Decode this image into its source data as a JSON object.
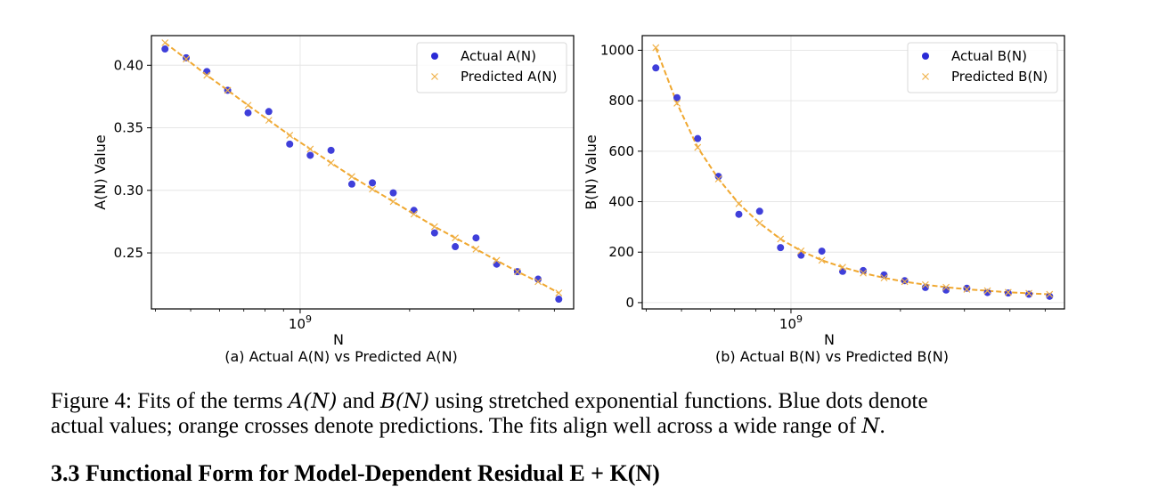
{
  "caption": {
    "label": "Figure 4:",
    "part1": "Fits of the terms",
    "term_a": "A(N)",
    "and": "and",
    "term_b": "B(N)",
    "part2": "using stretched exponential functions. Blue dots denote",
    "line2": "actual values; orange crosses denote predictions. The fits align well across a wide range of",
    "term_n": "N",
    "end": "."
  },
  "section_heading": "3.3 Functional Form for Model-Dependent Residual E + K(N)",
  "colors": {
    "actual": "#2a2ad6",
    "predicted": "#f0b24a",
    "fit_line": "#f0a830"
  },
  "chart_data": [
    {
      "type": "scatter",
      "subtitle": "(a) Actual A(N) vs Predicted A(N)",
      "xlabel": "N",
      "ylabel": "A(N) Value",
      "xscale": "log",
      "xlim": [
        390000000,
        5650000000
      ],
      "ylim": [
        0.2052,
        0.4237
      ],
      "xticks": [
        {
          "value": 1000000000,
          "label": "10",
          "exp": "9"
        }
      ],
      "yticks": [
        {
          "value": 0.25,
          "label": "0.25"
        },
        {
          "value": 0.3,
          "label": "0.30"
        },
        {
          "value": 0.35,
          "label": "0.35"
        },
        {
          "value": 0.4,
          "label": "0.40"
        }
      ],
      "grid": true,
      "legend_position": "top-right",
      "series": [
        {
          "name": "Actual A(N)",
          "marker": "dot",
          "x": [
            425000000,
            486000000,
            554000000,
            632000000,
            719000000,
            820000000,
            936000000,
            1066000000,
            1216000000,
            1387000000,
            1580000000,
            1803000000,
            2055000000,
            2342000000,
            2670000000,
            3045000000,
            3470000000,
            3957000000,
            4511000000,
            5142000000
          ],
          "y": [
            0.413,
            0.406,
            0.395,
            0.38,
            0.362,
            0.363,
            0.337,
            0.328,
            0.332,
            0.305,
            0.306,
            0.298,
            0.284,
            0.266,
            0.255,
            0.262,
            0.241,
            0.235,
            0.229,
            0.213
          ]
        },
        {
          "name": "Predicted A(N)",
          "marker": "x",
          "line": "dashed",
          "x": [
            425000000,
            486000000,
            554000000,
            632000000,
            719000000,
            820000000,
            936000000,
            1066000000,
            1216000000,
            1387000000,
            1580000000,
            1803000000,
            2055000000,
            2342000000,
            2670000000,
            3045000000,
            3470000000,
            3957000000,
            4511000000,
            5142000000
          ],
          "y": [
            0.418,
            0.405,
            0.392,
            0.38,
            0.368,
            0.356,
            0.344,
            0.333,
            0.322,
            0.311,
            0.301,
            0.291,
            0.281,
            0.271,
            0.262,
            0.253,
            0.244,
            0.235,
            0.227,
            0.218
          ]
        }
      ]
    },
    {
      "type": "scatter",
      "subtitle": "(b) Actual B(N) vs Predicted B(N)",
      "xlabel": "N",
      "ylabel": "B(N) Value",
      "xscale": "log",
      "xlim": [
        390000000,
        5650000000
      ],
      "ylim": [
        -25,
        1058
      ],
      "xticks": [
        {
          "value": 1000000000,
          "label": "10",
          "exp": "9"
        }
      ],
      "yticks": [
        {
          "value": 0,
          "label": "0"
        },
        {
          "value": 200,
          "label": "200"
        },
        {
          "value": 400,
          "label": "400"
        },
        {
          "value": 600,
          "label": "600"
        },
        {
          "value": 800,
          "label": "800"
        },
        {
          "value": 1000,
          "label": "1000"
        }
      ],
      "grid": true,
      "legend_position": "top-right",
      "series": [
        {
          "name": "Actual B(N)",
          "marker": "dot",
          "x": [
            425000000,
            486000000,
            554000000,
            632000000,
            719000000,
            820000000,
            936000000,
            1066000000,
            1216000000,
            1387000000,
            1580000000,
            1803000000,
            2055000000,
            2342000000,
            2670000000,
            3045000000,
            3470000000,
            3957000000,
            4511000000,
            5142000000
          ],
          "y": [
            930,
            812,
            650,
            500,
            350,
            362,
            218,
            188,
            204,
            124,
            127,
            110,
            87,
            60,
            50,
            57,
            40,
            38,
            33,
            25
          ]
        },
        {
          "name": "Predicted B(N)",
          "marker": "x",
          "line": "dashed",
          "x": [
            425000000,
            486000000,
            554000000,
            632000000,
            719000000,
            820000000,
            936000000,
            1066000000,
            1216000000,
            1387000000,
            1580000000,
            1803000000,
            2055000000,
            2342000000,
            2670000000,
            3045000000,
            3470000000,
            3957000000,
            4511000000,
            5142000000
          ],
          "y": [
            1010,
            790,
            615,
            490,
            392,
            315,
            252,
            205,
            168,
            140,
            117,
            98,
            83,
            71,
            61,
            53,
            47,
            41,
            37,
            33
          ]
        }
      ]
    }
  ]
}
